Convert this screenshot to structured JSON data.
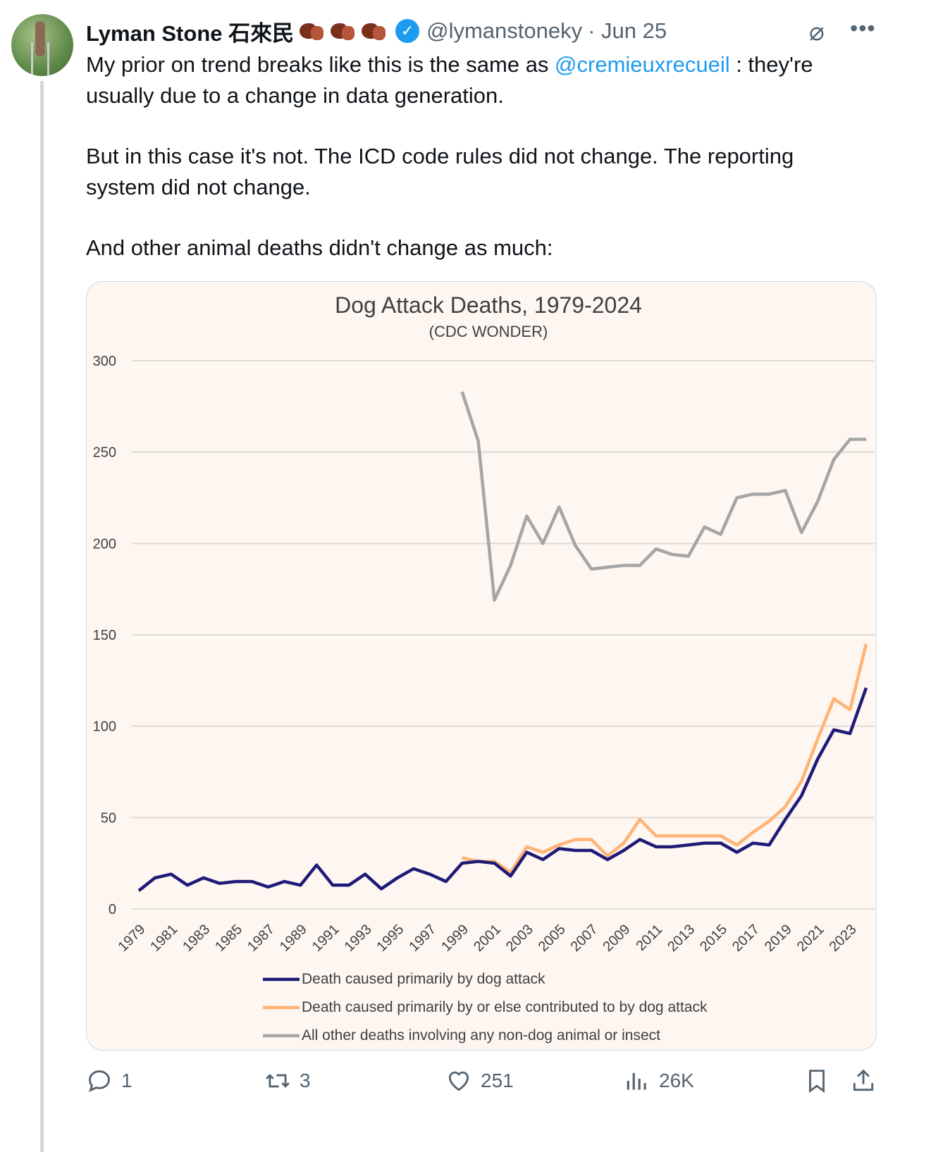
{
  "tweet": {
    "author_name": "Lyman Stone 石來民",
    "handle": "@lymanstoneky",
    "date": "· Jun 25",
    "text_part1": "My prior on trend breaks like this is the same as ",
    "mention": "@cremieuxrecueil",
    "text_part2": " : they're usually due to a change in data generation.",
    "paragraph2": "But in this case it's not. The ICD code rules did not change. The reporting system did not change.",
    "paragraph3": "And other animal deaths didn't change as much:"
  },
  "actions": {
    "replies": "1",
    "reposts": "3",
    "likes": "251",
    "views": "26K"
  },
  "chart_data": {
    "type": "line",
    "title": "Dog Attack Deaths, 1979-2024",
    "subtitle": "(CDC WONDER)",
    "xlabel": "",
    "ylabel": "",
    "ylim": [
      0,
      300
    ],
    "yticks": [
      "0",
      "50",
      "100",
      "150",
      "200",
      "250",
      "300"
    ],
    "xticks": [
      "1979",
      "1981",
      "1983",
      "1985",
      "1987",
      "1989",
      "1991",
      "1993",
      "1995",
      "1997",
      "1999",
      "2001",
      "2003",
      "2005",
      "2007",
      "2009",
      "2011",
      "2013",
      "2015",
      "2017",
      "2019",
      "2021",
      "2023"
    ],
    "grid": true,
    "legend_position": "bottom",
    "x_start": 1979,
    "series": [
      {
        "name": "Death caused primarily by dog attack",
        "color": "#1f1a78",
        "start": 1979,
        "values": [
          10,
          17,
          19,
          13,
          17,
          14,
          15,
          15,
          12,
          15,
          13,
          24,
          13,
          13,
          19,
          11,
          17,
          22,
          19,
          15,
          25,
          26,
          25,
          18,
          31,
          27,
          33,
          32,
          32,
          27,
          32,
          38,
          34,
          34,
          35,
          36,
          36,
          31,
          36,
          35,
          49,
          62,
          82,
          98,
          96,
          121
        ]
      },
      {
        "name": "Death caused primarily by or else contributed to by dog attack",
        "color": "#ffb375",
        "start": 1999,
        "values": [
          28,
          26,
          26,
          20,
          34,
          31,
          35,
          38,
          38,
          29,
          36,
          49,
          40,
          40,
          40,
          40,
          40,
          35,
          42,
          48,
          56,
          70,
          93,
          115,
          109,
          145
        ]
      },
      {
        "name": "All other deaths involving any non-dog animal or insect",
        "color": "#a5a5a5",
        "start": 1999,
        "values": [
          283,
          256,
          169,
          188,
          215,
          200,
          220,
          199,
          186,
          187,
          188,
          188,
          197,
          194,
          193,
          209,
          205,
          225,
          227,
          227,
          229,
          206,
          223,
          246,
          257,
          257
        ]
      }
    ]
  }
}
